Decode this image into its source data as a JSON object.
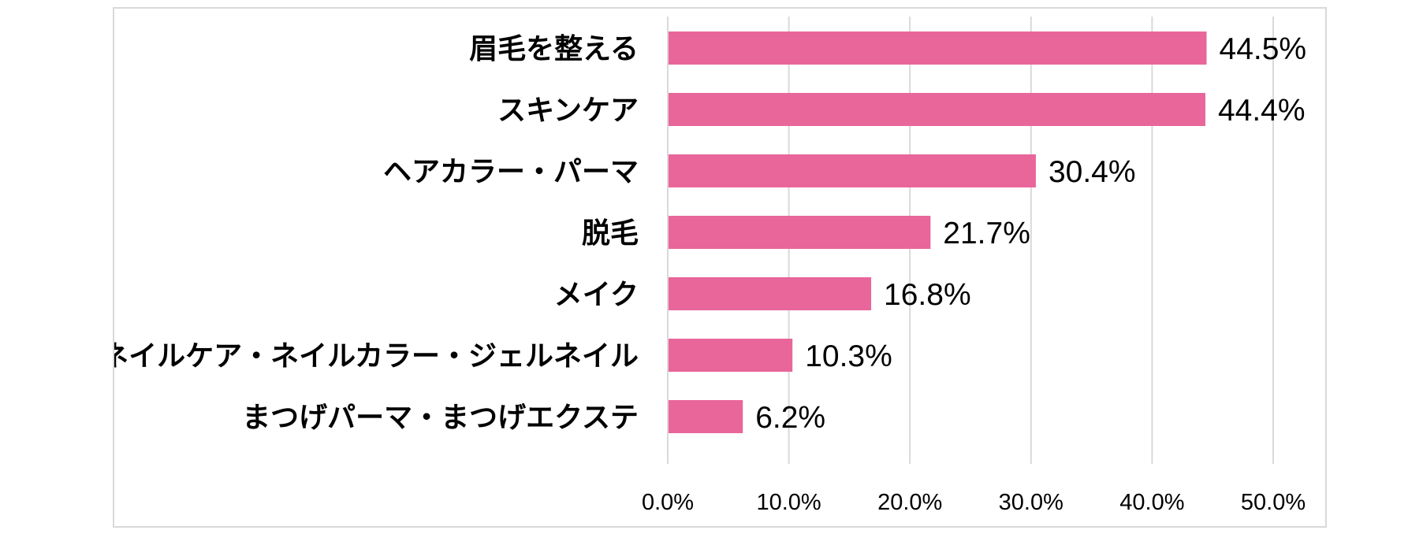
{
  "chart_data": {
    "type": "bar",
    "orientation": "horizontal",
    "categories": [
      "眉毛を整える",
      "スキンケア",
      "ヘアカラー・パーマ",
      "脱毛",
      "メイク",
      "ネイルケア・ネイルカラー・ジェルネイル",
      "まつげパーマ・まつげエクステ"
    ],
    "values": [
      44.5,
      44.4,
      30.4,
      21.7,
      16.8,
      10.3,
      6.2
    ],
    "value_labels": [
      "44.5%",
      "44.4%",
      "30.4%",
      "21.7%",
      "16.8%",
      "10.3%",
      "6.2%"
    ],
    "xlim": [
      0,
      50
    ],
    "xticks": [
      0,
      10,
      20,
      30,
      40,
      50
    ],
    "xtick_labels": [
      "0.0%",
      "10.0%",
      "20.0%",
      "30.0%",
      "40.0%",
      "50.0%"
    ],
    "grid": "vertical",
    "legend": "none",
    "bar_color": "#e8669a",
    "grid_color": "#d9d9d9"
  }
}
